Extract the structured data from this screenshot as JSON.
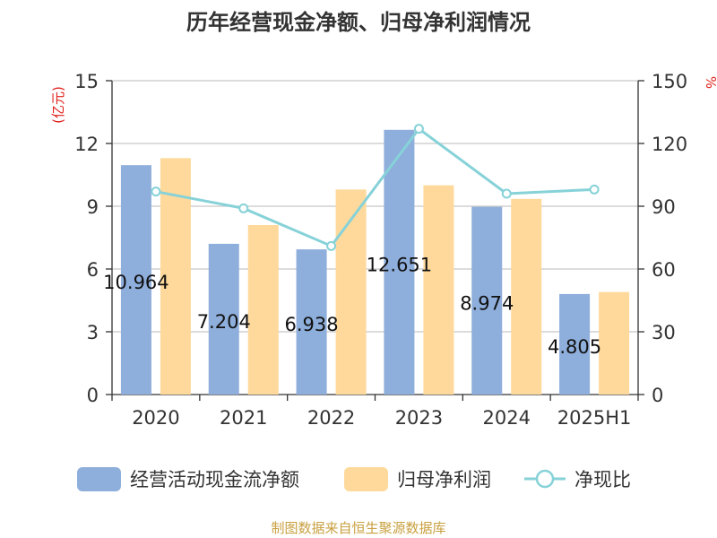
{
  "chart_data": {
    "type": "bar",
    "title": "历年经营现金净额、归母净利润情况",
    "y_left_label": "(亿元)",
    "y_right_label": "%",
    "source": "制图数据来自恒生聚源数据库",
    "categories": [
      "2020",
      "2021",
      "2022",
      "2023",
      "2024",
      "2025H1"
    ],
    "y_left_lim": [
      0,
      15
    ],
    "y_left_ticks": [
      0,
      3,
      6,
      9,
      12,
      15
    ],
    "y_right_lim": [
      0,
      150
    ],
    "y_right_ticks": [
      0,
      30,
      60,
      90,
      120,
      150
    ],
    "grid": true,
    "legend_position": "bottom",
    "series": [
      {
        "name": "经营活动现金流净额",
        "kind": "bar",
        "axis": "left",
        "color": "#8eaedb",
        "values": [
          10.964,
          7.204,
          6.938,
          12.651,
          8.974,
          4.805
        ],
        "labels": [
          "10.964",
          "7.204",
          "6.938",
          "12.651",
          "8.974",
          "4.805"
        ]
      },
      {
        "name": "归母净利润",
        "kind": "bar",
        "axis": "left",
        "color": "#fed99b",
        "values": [
          11.3,
          8.1,
          9.8,
          10.0,
          9.35,
          4.9
        ]
      },
      {
        "name": "净现比",
        "kind": "line",
        "axis": "right",
        "color": "#86d2d8",
        "values": [
          97,
          89,
          71,
          127,
          96,
          98
        ]
      }
    ]
  }
}
